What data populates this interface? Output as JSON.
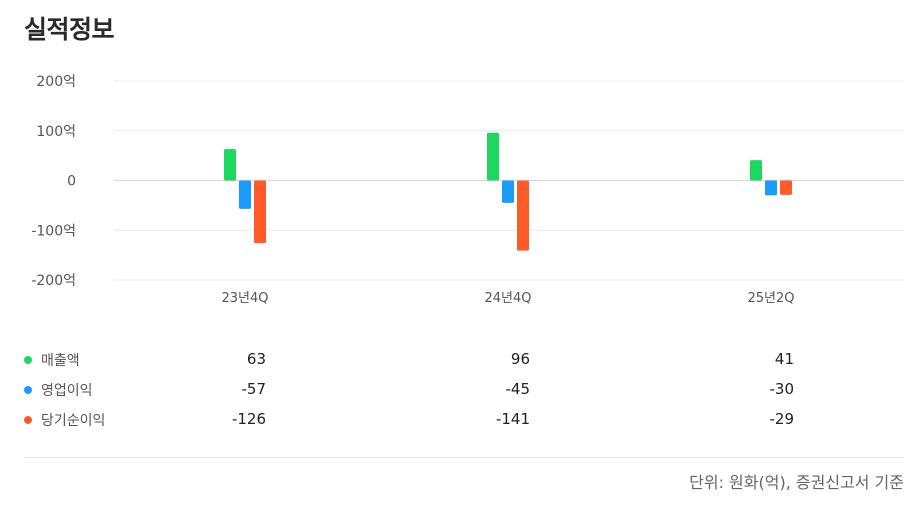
{
  "header": {
    "title": "실적정보"
  },
  "chart_data": {
    "type": "bar",
    "categories": [
      "23년4Q",
      "24년4Q",
      "25년2Q"
    ],
    "series": [
      {
        "name": "매출액",
        "color": "#1ed760",
        "values": [
          63,
          96,
          41
        ]
      },
      {
        "name": "영업이익",
        "color": "#1a9cff",
        "values": [
          -57,
          -45,
          -30
        ]
      },
      {
        "name": "당기순이익",
        "color": "#ff5b2a",
        "values": [
          -126,
          -141,
          -29
        ]
      }
    ],
    "y_ticks": [
      {
        "value": 200,
        "label": "200억"
      },
      {
        "value": 100,
        "label": "100억"
      },
      {
        "value": 0,
        "label": "0"
      },
      {
        "value": -100,
        "label": "-100억"
      },
      {
        "value": -200,
        "label": "-200억"
      }
    ],
    "ylim": [
      -200,
      200
    ],
    "grid": true
  },
  "table": {
    "rows": [
      {
        "name": "매출액",
        "color": "#1ed760",
        "values": [
          "63",
          "96",
          "41"
        ]
      },
      {
        "name": "영업이익",
        "color": "#1a9cff",
        "values": [
          "-57",
          "-45",
          "-30"
        ]
      },
      {
        "name": "당기순이익",
        "color": "#ff5b2a",
        "values": [
          "-126",
          "-141",
          "-29"
        ]
      }
    ]
  },
  "footer": {
    "note": "단위: 원화(억), 증권신고서 기준"
  }
}
